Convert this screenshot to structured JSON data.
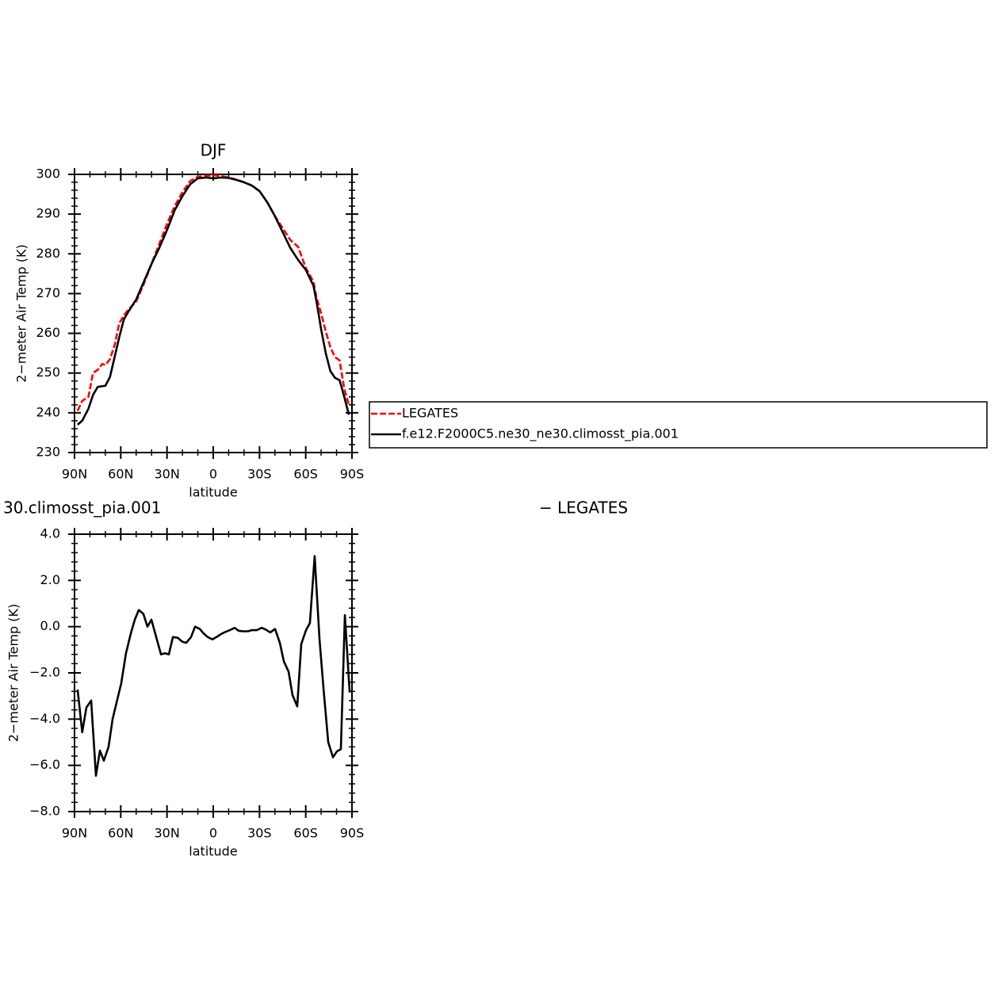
{
  "chart_data": [
    {
      "type": "line",
      "title": "DJF",
      "xlabel": "latitude",
      "ylabel": "2−meter Air Temp (K)",
      "legend": "right",
      "x": [
        88,
        85,
        81,
        78,
        75,
        72,
        70,
        67,
        64,
        61,
        58,
        55,
        50,
        45,
        40,
        35,
        30,
        25,
        20,
        15,
        10,
        5,
        0,
        -5,
        -10,
        -15,
        -20,
        -25,
        -30,
        -35,
        -40,
        -45,
        -50,
        -55,
        -60,
        -65,
        -67,
        -70,
        -73,
        -76,
        -79,
        -82,
        -85,
        -88
      ],
      "series": [
        {
          "name": "LEGATES",
          "color": "#ff0000",
          "dashed": true,
          "values": [
            240.5,
            243,
            244,
            250,
            250.8,
            252.3,
            252,
            253.5,
            257,
            262.5,
            264.5,
            266,
            268,
            272.5,
            277.5,
            282.5,
            287.5,
            292,
            295.5,
            298.3,
            299.4,
            299.6,
            299.8,
            299.6,
            299.2,
            298.7,
            298,
            297.2,
            295.8,
            293,
            289.5,
            286.5,
            283.5,
            281.8,
            276.5,
            273,
            269,
            265,
            260.5,
            256.5,
            254,
            253.2,
            246,
            242
          ]
        },
        {
          "name": "f.e12.F2000C5.ne30_ne30.climosst_pia.001",
          "color": "#000000",
          "dashed": false,
          "values": [
            237,
            238,
            241,
            244.5,
            246.5,
            246.7,
            246.8,
            249,
            254,
            259,
            263.5,
            265.5,
            268.5,
            273,
            277.5,
            281.5,
            286,
            291,
            294.5,
            297.5,
            299,
            299.2,
            299,
            299.2,
            299.1,
            298.6,
            298,
            297.2,
            295.8,
            293,
            289.5,
            285.5,
            281.5,
            278.5,
            276,
            272,
            268,
            261,
            255,
            250.5,
            248.8,
            248.2,
            244,
            239.5
          ]
        }
      ],
      "xlim": [
        90,
        -90
      ],
      "xticks": [
        {
          "value": 90,
          "label": "90N"
        },
        {
          "value": 60,
          "label": "60N"
        },
        {
          "value": 30,
          "label": "30N"
        },
        0,
        {
          "value": -30,
          "label": "30S"
        },
        {
          "value": -60,
          "label": "60S"
        },
        {
          "value": -90,
          "label": "90S"
        }
      ],
      "ylim": [
        230,
        300
      ],
      "yticks": [
        230,
        240,
        250,
        260,
        270,
        280,
        290,
        300
      ]
    },
    {
      "type": "line",
      "title": "30.climosst_pia.001",
      "subtitle": "− LEGATES",
      "xlabel": "latitude",
      "ylabel": "2−meter Air Temp (K)",
      "x": [
        88,
        85,
        82.3,
        79.2,
        76.1,
        73.5,
        71,
        67.9,
        65.3,
        59.7,
        56.6,
        53.5,
        50.9,
        48.3,
        45.3,
        42.7,
        40.1,
        33.9,
        31.4,
        28.8,
        26.2,
        23.1,
        20.1,
        17.5,
        14.4,
        11.8,
        8.7,
        6.2,
        3.6,
        0.5,
        -2.1,
        -5.1,
        -8.2,
        -10.8,
        -13.9,
        -16.5,
        -19.5,
        -22.6,
        -25.2,
        -28.3,
        -31.4,
        -33.9,
        -37,
        -40.1,
        -43.2,
        -45.8,
        -48.9,
        -51.4,
        -54.5,
        -57.1,
        -60.2,
        -62.7,
        -65.8,
        -68.9,
        -71.5,
        -74.6,
        -77.7,
        -80.2,
        -82.8,
        -85.4,
        -88.5
      ],
      "series": [
        {
          "color": "#000000",
          "dashed": false,
          "values": [
            -2.72,
            -4.57,
            -3.5,
            -3.2,
            -6.45,
            -5.36,
            -5.8,
            -5.2,
            -4.0,
            -2.45,
            -1.15,
            -0.3,
            0.3,
            0.72,
            0.55,
            0,
            0.3,
            -1.2,
            -1.15,
            -1.2,
            -0.45,
            -0.48,
            -0.65,
            -0.7,
            -0.45,
            0.0,
            -0.1,
            -0.3,
            -0.45,
            -0.55,
            -0.45,
            -0.32,
            -0.22,
            -0.15,
            -0.05,
            -0.18,
            -0.2,
            -0.2,
            -0.15,
            -0.15,
            -0.05,
            -0.12,
            -0.25,
            -0.1,
            -0.7,
            -1.5,
            -1.95,
            -2.95,
            -3.45,
            -0.75,
            -0.15,
            0.15,
            3.05,
            -0.5,
            -2.65,
            -5.0,
            -5.65,
            -5.4,
            -5.3,
            0.5,
            -2.85
          ]
        }
      ],
      "xlim": [
        90,
        -90
      ],
      "xticks": [
        {
          "value": 90,
          "label": "90N"
        },
        {
          "value": 60,
          "label": "60N"
        },
        {
          "value": 30,
          "label": "30N"
        },
        0,
        {
          "value": -30,
          "label": "30S"
        },
        {
          "value": -60,
          "label": "60S"
        },
        {
          "value": -90,
          "label": "90S"
        }
      ],
      "ylim": [
        -8,
        4
      ],
      "yticks": [
        {
          "value": -8,
          "label": "−8.0"
        },
        {
          "value": -6,
          "label": "−6.0"
        },
        {
          "value": -4,
          "label": "−4.0"
        },
        {
          "value": -2,
          "label": "−2.0"
        },
        {
          "value": 0,
          "label": "0.0"
        },
        {
          "value": 2,
          "label": "2.0"
        },
        {
          "value": 4,
          "label": "4.0"
        }
      ]
    }
  ]
}
